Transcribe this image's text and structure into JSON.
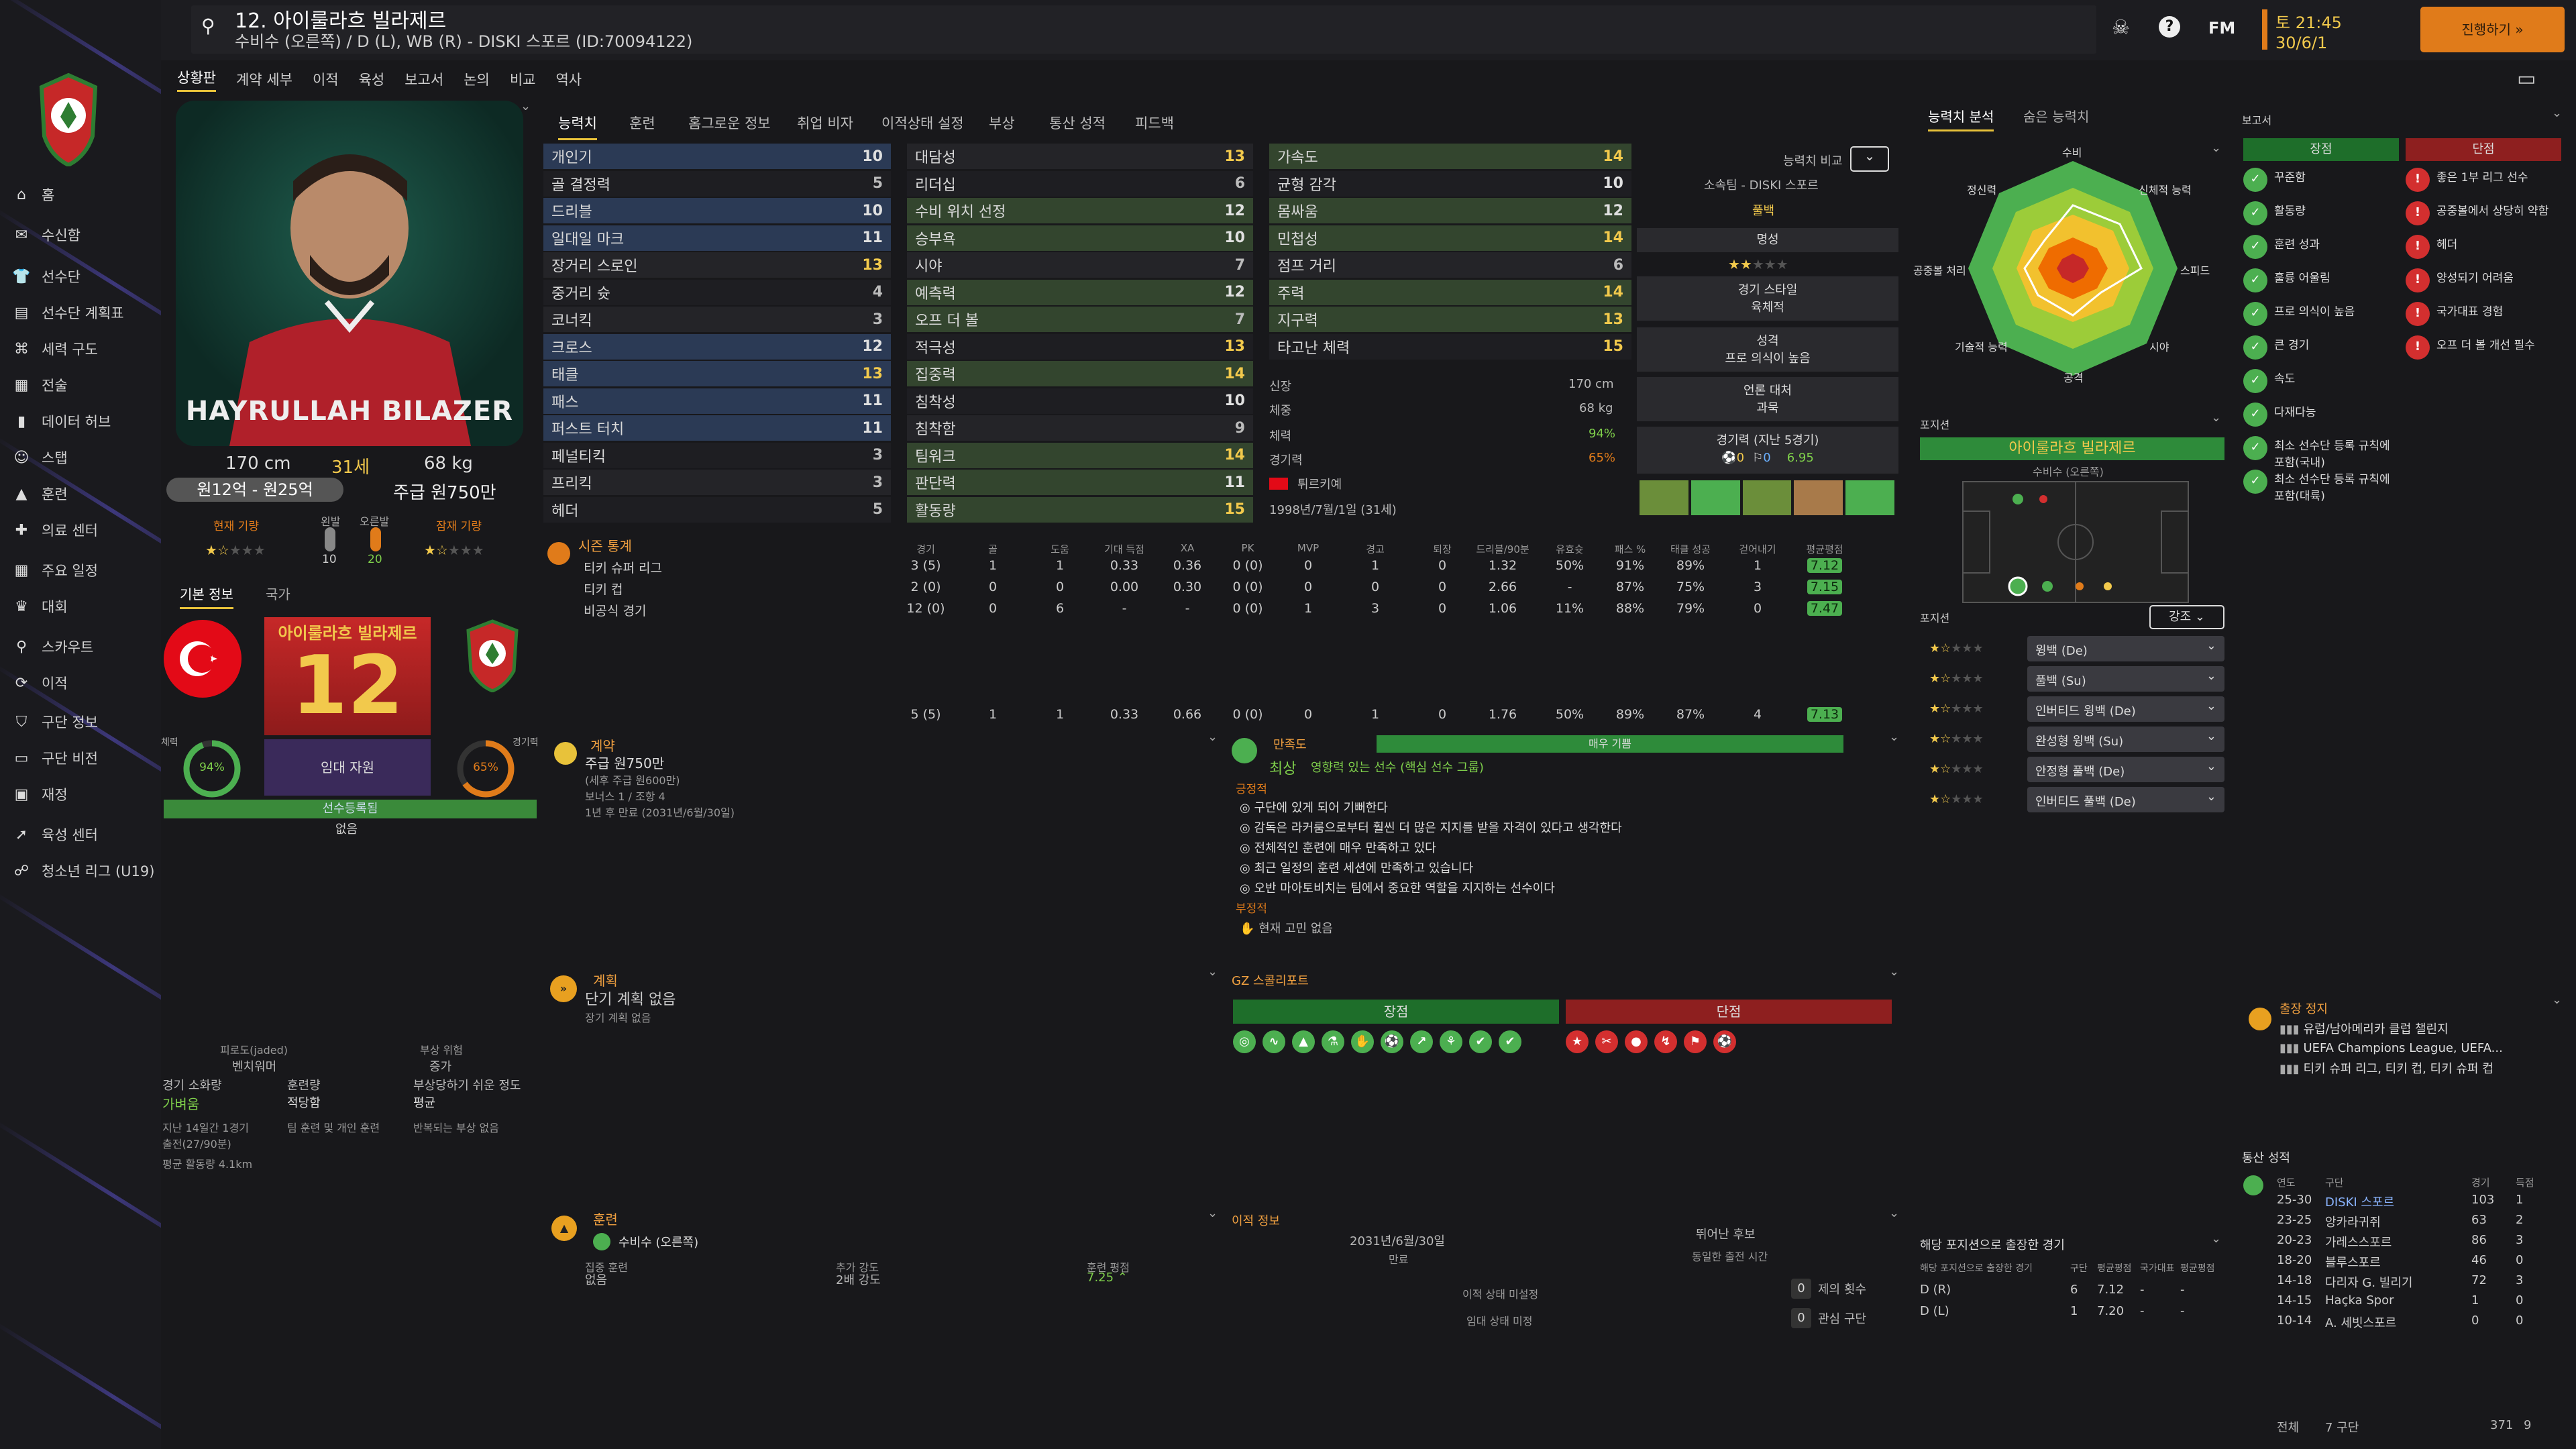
{
  "header": {
    "title": "12. 아이룰라흐 빌라제르",
    "subtitle": "수비수 (오른쪽) / D (L), WB (R) - DISKI 스포르 (ID:70094122)",
    "fm_label": "FM",
    "date": "토 21:45",
    "date2": "30/6/1",
    "continue": "진행하기"
  },
  "sidebar": {
    "items": [
      "홈",
      "수신함",
      "선수단",
      "선수단 계획표",
      "세력 구도",
      "전술",
      "데이터 허브",
      "스탭",
      "훈련",
      "의료 센터",
      "주요 일정",
      "대회",
      "스카우트",
      "이적",
      "구단 정보",
      "구단 비전",
      "재정",
      "육성 센터",
      "청소년 리그 (U19)"
    ]
  },
  "subnav": [
    "상황판",
    "계약 세부",
    "이적",
    "육성",
    "보고서",
    "논의",
    "비교",
    "역사"
  ],
  "tabs": [
    "능력치",
    "훈련",
    "홈그로운 정보",
    "취업 비자",
    "이적상태 설정",
    "부상",
    "통산 성적",
    "피드백"
  ],
  "profile": {
    "photo_name": "HAYRULLAH BILAZER",
    "height": "170 cm",
    "age": "31세",
    "weight": "68 kg",
    "value": "원12억 - 원25억",
    "wage": "주급 원750만",
    "current_ability": "현재 기량",
    "potential_ability": "잠재 기량",
    "left_foot": "왼발",
    "right_foot": "오른발",
    "left_val": "10",
    "right_val": "20"
  },
  "info_tabs": [
    "기본 정보",
    "국가"
  ],
  "card": {
    "name": "아이룰라흐 빌라제르",
    "number": "12",
    "role": "핵심 선수",
    "fitness_label": "체력",
    "fitness": "94%",
    "sharp_label": "경기력",
    "sharp": "65%",
    "squad": "임대 자원",
    "status": "선수등록됨",
    "status2": "없음"
  },
  "attributes": {
    "tech": [
      [
        "개인기",
        "10"
      ],
      [
        "골 결정력",
        "5"
      ],
      [
        "드리블",
        "10"
      ],
      [
        "일대일 마크",
        "11"
      ],
      [
        "장거리 스로인",
        "13"
      ],
      [
        "중거리 슛",
        "4"
      ],
      [
        "코너킥",
        "3"
      ],
      [
        "크로스",
        "12"
      ],
      [
        "태클",
        "13"
      ],
      [
        "패스",
        "11"
      ],
      [
        "퍼스트 터치",
        "11"
      ],
      [
        "페널티킥",
        "3"
      ],
      [
        "프리킥",
        "3"
      ],
      [
        "헤더",
        "5"
      ]
    ],
    "mental": [
      [
        "대담성",
        "13"
      ],
      [
        "리더십",
        "6"
      ],
      [
        "수비 위치 선정",
        "12"
      ],
      [
        "승부욕",
        "10"
      ],
      [
        "시야",
        "7"
      ],
      [
        "예측력",
        "12"
      ],
      [
        "오프 더 볼",
        "7"
      ],
      [
        "적극성",
        "13"
      ],
      [
        "집중력",
        "14"
      ],
      [
        "침착성",
        "10"
      ],
      [
        "침착함",
        "9"
      ],
      [
        "팀워크",
        "14"
      ],
      [
        "판단력",
        "11"
      ],
      [
        "활동량",
        "15"
      ]
    ],
    "phys": [
      [
        "가속도",
        "14"
      ],
      [
        "균형 감각",
        "10"
      ],
      [
        "몸싸움",
        "12"
      ],
      [
        "민첩성",
        "14"
      ],
      [
        "점프 거리",
        "6"
      ],
      [
        "주력",
        "14"
      ],
      [
        "지구력",
        "13"
      ],
      [
        "타고난 체력",
        "15"
      ]
    ]
  },
  "physical_info": {
    "height_label": "신장",
    "height": "170 cm",
    "weight_label": "체중",
    "weight": "68 kg",
    "fitness_label": "체력",
    "fitness": "94%",
    "sharp_label": "경기력",
    "sharp": "65%",
    "nation": "튀르키예",
    "dob": "1998년/7월/1일 (31세)"
  },
  "compare": {
    "label": "능력치 비교",
    "club": "소속팀 - DISKI 스포르",
    "position": "풀백",
    "fame_label": "명성",
    "style_label": "경기 스타일",
    "style": "육체적",
    "personality_label": "성격",
    "personality": "프로 의식이 높음",
    "media_label": "언론 대처",
    "media": "과묵",
    "form_label": "경기력 (지난 5경기)",
    "goals": "0",
    "assists": "0",
    "rating": "6.95"
  },
  "season_stats": {
    "title": "시즌 통계",
    "headers": [
      "경기",
      "골",
      "도움",
      "기대 득점",
      "XA",
      "PK",
      "MVP",
      "경고",
      "퇴장",
      "드리블/90분",
      "유효슛",
      "패스 %",
      "태클 성공",
      "걷어내기",
      "평균평점"
    ],
    "rows": [
      [
        "티키 슈퍼 리그",
        "3 (5)",
        "1",
        "1",
        "0.33",
        "0.36",
        "0 (0)",
        "0",
        "1",
        "0",
        "1.32",
        "50%",
        "91%",
        "89%",
        "1",
        "7.12"
      ],
      [
        "티키 컵",
        "2 (0)",
        "0",
        "0",
        "0.00",
        "0.30",
        "0 (0)",
        "0",
        "0",
        "0",
        "2.66",
        "-",
        "87%",
        "75%",
        "3",
        "7.15"
      ],
      [
        "비공식 경기",
        "12 (0)",
        "0",
        "6",
        "-",
        "-",
        "0 (0)",
        "1",
        "3",
        "0",
        "1.06",
        "11%",
        "88%",
        "79%",
        "0",
        "7.47"
      ]
    ],
    "total": [
      "",
      "5 (5)",
      "1",
      "1",
      "0.33",
      "0.66",
      "0 (0)",
      "0",
      "1",
      "0",
      "1.76",
      "50%",
      "89%",
      "87%",
      "4",
      "7.13"
    ]
  },
  "radar": {
    "tab1": "능력치 분석",
    "tab2": "숨은 능력치",
    "labels": [
      "수비",
      "신체적 능력",
      "스피드",
      "시야",
      "공격",
      "기술적 능력",
      "공중볼 처리",
      "정신력"
    ]
  },
  "position": {
    "title": "포지션",
    "player": "아이룰라흐 빌라제르",
    "role": "수비수 (오른쪽)"
  },
  "roles": {
    "title": "포지션",
    "sort": "강조",
    "items": [
      "윙백 (De)",
      "풀백 (Su)",
      "인버티드 윙백 (De)",
      "완성형 윙백 (Su)",
      "안정형 풀백 (De)",
      "인버티드 풀백 (De)"
    ]
  },
  "reports": {
    "title": "보고서",
    "pros_label": "장점",
    "cons_label": "단점",
    "pros": [
      "꾸준함",
      "활동량",
      "훈련 성과",
      "훌륭 어울림",
      "프로 의식이 높음",
      "큰 경기",
      "속도",
      "다재다능",
      "최소 선수단 등록 규칙에 포함(국내)",
      "최소 선수단 등록 규칙에 포함(대륙)"
    ],
    "cons": [
      "좋은 1부 리그 선수",
      "공중볼에서 상당히 약함",
      "헤더",
      "양성되기 어려움",
      "국가대표 경험",
      "오프 더 볼 개선 필수"
    ]
  },
  "suspension": {
    "title": "출장 정지",
    "items": [
      "유럽/남아메리카 클럽 챌린지",
      "UEFA Champions League, UEFA...",
      "티키 슈퍼 리그, 티키 컵, 티키 슈퍼 컵"
    ]
  },
  "career": {
    "title": "통산 성적",
    "headers": [
      "연도",
      "구단",
      "경기",
      "득점"
    ],
    "rows": [
      [
        "25-30",
        "DISKI 스포르",
        "103",
        "1"
      ],
      [
        "23-25",
        "앙카라귀쥐",
        "63",
        "2"
      ],
      [
        "20-23",
        "가레스스포르",
        "86",
        "3"
      ],
      [
        "18-20",
        "블루스포르",
        "46",
        "0"
      ],
      [
        "14-18",
        "다리자 G. 빌리기",
        "72",
        "3"
      ],
      [
        "14-15",
        "Haçka Spor",
        "1",
        "0"
      ],
      [
        "10-14",
        "A. 세빗스포르",
        "0",
        "0"
      ]
    ],
    "total_label": "전체",
    "total_clubs": "7 구단",
    "total_apps": "371",
    "total_goals": "9"
  },
  "contract": {
    "title": "계약",
    "wage": "주급 원750만",
    "wage_sub": "(세후 주급 원600만)",
    "bonus": "보너스 1 / 조항 4",
    "expiry": "1년 후 만료 (2031년/6월/30일)"
  },
  "happiness": {
    "title": "만족도",
    "bar": "매우 기쁨",
    "status": "최상",
    "subtitle": "영향력 있는 선수 (핵심 선수 그룹)",
    "pos_label": "긍정적",
    "pos": [
      "구단에 있게 되어 기뻐한다",
      "감독은 라커룸으로부터 훨씬 더 많은 지지를 받을 자격이 있다고 생각한다",
      "전체적인 훈련에 매우 만족하고 있다",
      "최근 일정의 훈련 세션에 만족하고 있습니다",
      "오반 마아토비치는 팀에서 중요한 역할을 지지하는 선수이다"
    ],
    "neg_label": "부정적",
    "neg": [
      "현재 고민 없음"
    ]
  },
  "plans": {
    "title": "계획",
    "short": "단기 계획 없음",
    "long": "장기 계획 없음"
  },
  "scout": {
    "title": "GZ 스콜리포트",
    "pros": "장점",
    "cons": "단점"
  },
  "injury": {
    "ratio_label": "피로도(jaded)",
    "ratio": "벤치워머",
    "risk_label": "부상 위험",
    "risk": "증가",
    "cond_label": "경기 소화량",
    "cond": "가벼움",
    "train_label": "훈련량",
    "train": "적당함",
    "susc_label": "부상당하기 쉬운 정도",
    "susc": "평균",
    "note1": "지난 14일간 1경기",
    "note1b": "출전(27/90분)",
    "note2": "팀 훈련 및 개인 훈련",
    "note3": "반복되는 부상 없음",
    "dist": "평균 활동량 4.1km"
  },
  "training": {
    "title": "훈련",
    "role": "수비수 (오른쪽)",
    "focus_label": "집중 훈련",
    "focus": "없음",
    "intensity_label": "추가 강도",
    "intensity": "2배 강도",
    "rating_label": "훈련 평점",
    "rating": "7.25"
  },
  "transfer": {
    "title": "이적 정보",
    "contract_end": "2031년/6월/30일",
    "contract_end_label": "만료",
    "prospect": "뛰어난 후보",
    "prospect_sub": "동일한 출전 시간",
    "status1": "이적 상태 미설정",
    "status2": "임대 상태 미정",
    "offers_label": "제의 횟수",
    "offers": "0",
    "interest_label": "관심 구단",
    "interest": "0"
  },
  "played_positions": {
    "title": "해당 포지션으로 출장한 경기",
    "sub": "해당 포지션으로 출장한 경기",
    "headers": [
      "구단",
      "평균평점",
      "국가대표",
      "평균평점"
    ],
    "rows": [
      [
        "D (R)",
        "6",
        "7.12",
        "-",
        "-"
      ],
      [
        "D (L)",
        "1",
        "7.20",
        "-",
        "-"
      ]
    ]
  },
  "colors": {
    "accent": "#e8c23a",
    "green": "#2e7d32",
    "red": "#c62828",
    "orange": "#e07b1a"
  }
}
